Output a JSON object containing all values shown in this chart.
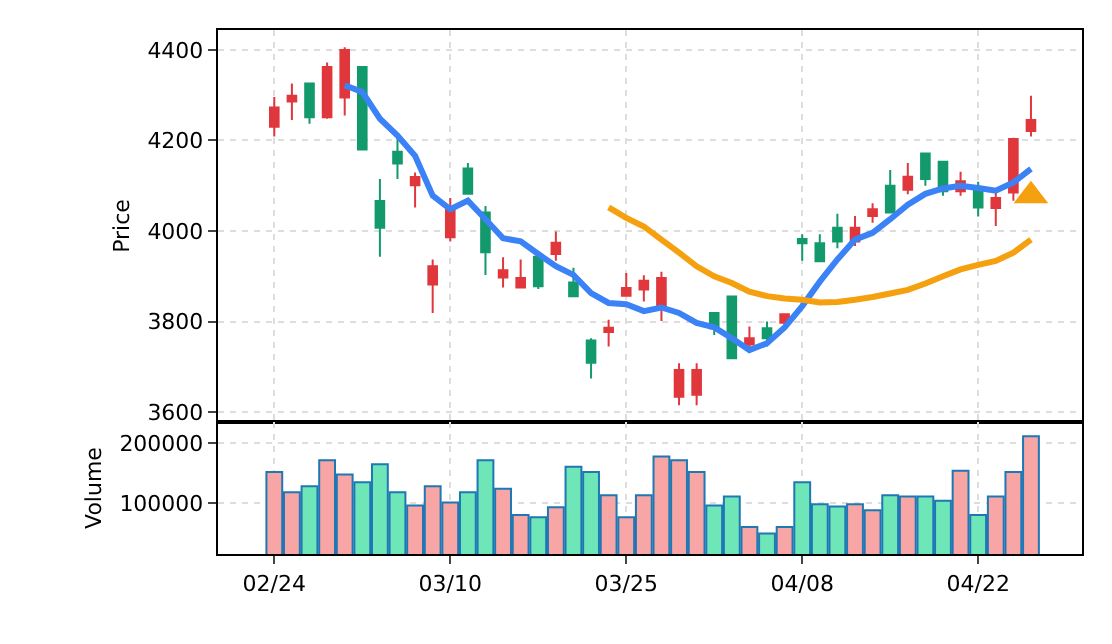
{
  "chart_data": [
    {
      "type": "candlestick",
      "ylabel": "Price",
      "tick_labels": "y",
      "grid": true,
      "ylim": [
        3578,
        4444
      ],
      "yticks": [
        3600,
        3800,
        4000,
        4200,
        4400
      ],
      "categories": [
        null,
        null,
        null,
        null,
        null,
        null,
        null,
        null,
        null,
        null,
        null,
        null,
        null,
        null,
        null,
        null,
        null,
        null,
        null,
        null,
        null,
        null,
        null,
        null,
        null,
        null,
        null,
        null,
        null,
        null,
        null,
        null,
        null,
        null,
        null,
        null,
        null,
        null,
        null,
        null,
        null,
        null,
        null,
        null
      ],
      "ohlc": [
        [
          4230,
          4296,
          4209,
          4273
        ],
        [
          4286,
          4326,
          4245,
          4299
        ],
        [
          4326,
          4326,
          4237,
          4251
        ],
        [
          4251,
          4372,
          4248,
          4362
        ],
        [
          4295,
          4406,
          4255,
          4400
        ],
        [
          4362,
          4362,
          4180,
          4180
        ],
        [
          4066,
          4115,
          3943,
          4007
        ],
        [
          4175,
          4206,
          4115,
          4149
        ],
        [
          4101,
          4129,
          4052,
          4119
        ],
        [
          3882,
          3937,
          3819,
          3922
        ],
        [
          3986,
          4073,
          3977,
          4051
        ],
        [
          4138,
          4150,
          4082,
          4082
        ],
        [
          4041,
          4055,
          3903,
          3953
        ],
        [
          3897,
          3942,
          3875,
          3913
        ],
        [
          3875,
          3937,
          3875,
          3896
        ],
        [
          3943,
          3943,
          3872,
          3878
        ],
        [
          3949,
          3999,
          3934,
          3974
        ],
        [
          3886,
          3919,
          3856,
          3856
        ],
        [
          3758,
          3763,
          3674,
          3709
        ],
        [
          3777,
          3804,
          3745,
          3786
        ],
        [
          3857,
          3907,
          3857,
          3874
        ],
        [
          3871,
          3902,
          3844,
          3890
        ],
        [
          3834,
          3910,
          3801,
          3896
        ],
        [
          3634,
          3708,
          3615,
          3693
        ],
        [
          3638,
          3708,
          3615,
          3693
        ],
        [
          3819,
          3819,
          3770,
          3785
        ],
        [
          3855,
          3855,
          3719,
          3719
        ],
        [
          3749,
          3789,
          3737,
          3763
        ],
        [
          3785,
          3800,
          3745,
          3763
        ],
        [
          3797,
          3816,
          3782,
          3816
        ],
        [
          3982,
          3993,
          3934,
          3973
        ],
        [
          3973,
          3993,
          3933,
          3933
        ],
        [
          4007,
          4038,
          3962,
          3977
        ],
        [
          3977,
          4033,
          3967,
          4007
        ],
        [
          4033,
          4061,
          4018,
          4048
        ],
        [
          4100,
          4135,
          4041,
          4041
        ],
        [
          4091,
          4150,
          4081,
          4120
        ],
        [
          4171,
          4171,
          4100,
          4115
        ],
        [
          4153,
          4153,
          4078,
          4088
        ],
        [
          4088,
          4131,
          4078,
          4110
        ],
        [
          4097,
          4109,
          4032,
          4052
        ],
        [
          4051,
          4092,
          4011,
          4073
        ],
        [
          4085,
          4206,
          4067,
          4203
        ],
        [
          4221,
          4299,
          4209,
          4245
        ]
      ],
      "colors": [
        "#e0373c",
        "#e0373c",
        "#139a6c",
        "#e0373c",
        "#e0373c",
        "#139a6c",
        "#139a6c",
        "#139a6c",
        "#e0373c",
        "#e0373c",
        "#e0373c",
        "#139a6c",
        "#139a6c",
        "#e0373c",
        "#e0373c",
        "#139a6c",
        "#e0373c",
        "#139a6c",
        "#139a6c",
        "#e0373c",
        "#e0373c",
        "#e0373c",
        "#e0373c",
        "#e0373c",
        "#e0373c",
        "#139a6c",
        "#139a6c",
        "#e0373c",
        "#139a6c",
        "#e0373c",
        "#139a6c",
        "#139a6c",
        "#139a6c",
        "#e0373c",
        "#e0373c",
        "#139a6c",
        "#e0373c",
        "#139a6c",
        "#139a6c",
        "#e0373c",
        "#139a6c",
        "#e0373c",
        "#e0373c",
        "#e0373c"
      ],
      "series": [
        {
          "type": "line",
          "color": "#3b82f6",
          "values": [
            null,
            null,
            null,
            null,
            4322,
            4307,
            4248,
            4211,
            4166,
            4078,
            4048,
            4067,
            4026,
            3984,
            3977,
            3949,
            3922,
            3903,
            3863,
            3841,
            3838,
            3823,
            3831,
            3819,
            3797,
            3787,
            3763,
            3737,
            3752,
            3787,
            3834,
            3888,
            3937,
            3981,
            3996,
            4026,
            4058,
            4082,
            4094,
            4100,
            4095,
            4089,
            4107,
            4137
          ]
        },
        {
          "type": "line",
          "color": "#f5a00f",
          "values": [
            null,
            null,
            null,
            null,
            null,
            null,
            null,
            null,
            null,
            null,
            null,
            null,
            null,
            null,
            null,
            null,
            null,
            null,
            null,
            4052,
            4029,
            4010,
            3981,
            3952,
            3922,
            3900,
            3885,
            3866,
            3856,
            3851,
            3848,
            3842,
            3843,
            3848,
            3854,
            3862,
            3870,
            3884,
            3900,
            3915,
            3925,
            3934,
            3952,
            3981
          ]
        },
        {
          "type": "scatter",
          "marker": "triangle",
          "color": "#f5a00f",
          "values": [
            null,
            null,
            null,
            null,
            null,
            null,
            null,
            null,
            null,
            null,
            null,
            null,
            null,
            null,
            null,
            null,
            null,
            null,
            null,
            null,
            null,
            null,
            null,
            null,
            null,
            null,
            null,
            null,
            null,
            null,
            null,
            null,
            null,
            null,
            null,
            null,
            null,
            null,
            null,
            null,
            null,
            null,
            null,
            4078
          ]
        }
      ]
    },
    {
      "type": "bar",
      "ylabel": "Volume",
      "grid": true,
      "ylim": [
        14500,
        236000
      ],
      "yticks": [
        100000,
        200000
      ],
      "categories": [
        "02/24",
        null,
        null,
        null,
        null,
        null,
        null,
        null,
        null,
        null,
        "03/10",
        null,
        null,
        null,
        null,
        null,
        null,
        null,
        null,
        null,
        "03/25",
        null,
        null,
        null,
        null,
        null,
        null,
        null,
        null,
        null,
        "04/08",
        null,
        null,
        null,
        null,
        null,
        null,
        null,
        null,
        null,
        "04/22",
        null,
        null,
        null
      ],
      "values": [
        152000,
        118000,
        128000,
        172000,
        148000,
        135000,
        165000,
        118000,
        96000,
        128000,
        101000,
        118000,
        172000,
        124000,
        80000,
        76000,
        93000,
        161000,
        152000,
        113000,
        76000,
        113000,
        178000,
        172000,
        152000,
        96000,
        111000,
        60000,
        49000,
        60000,
        135000,
        98000,
        94000,
        98000,
        88000,
        113000,
        111000,
        111000,
        104000,
        154000,
        80000,
        111000,
        152000,
        212000
      ],
      "colors": [
        "#f7a5a5",
        "#f7a5a5",
        "#6ee6b8",
        "#f7a5a5",
        "#f7a5a5",
        "#6ee6b8",
        "#6ee6b8",
        "#6ee6b8",
        "#f7a5a5",
        "#f7a5a5",
        "#f7a5a5",
        "#6ee6b8",
        "#6ee6b8",
        "#f7a5a5",
        "#f7a5a5",
        "#6ee6b8",
        "#f7a5a5",
        "#6ee6b8",
        "#6ee6b8",
        "#f7a5a5",
        "#f7a5a5",
        "#f7a5a5",
        "#f7a5a5",
        "#f7a5a5",
        "#f7a5a5",
        "#6ee6b8",
        "#6ee6b8",
        "#f7a5a5",
        "#6ee6b8",
        "#f7a5a5",
        "#6ee6b8",
        "#6ee6b8",
        "#6ee6b8",
        "#f7a5a5",
        "#f7a5a5",
        "#6ee6b8",
        "#f7a5a5",
        "#6ee6b8",
        "#6ee6b8",
        "#f7a5a5",
        "#6ee6b8",
        "#f7a5a5",
        "#f7a5a5",
        "#f7a5a5"
      ]
    }
  ]
}
